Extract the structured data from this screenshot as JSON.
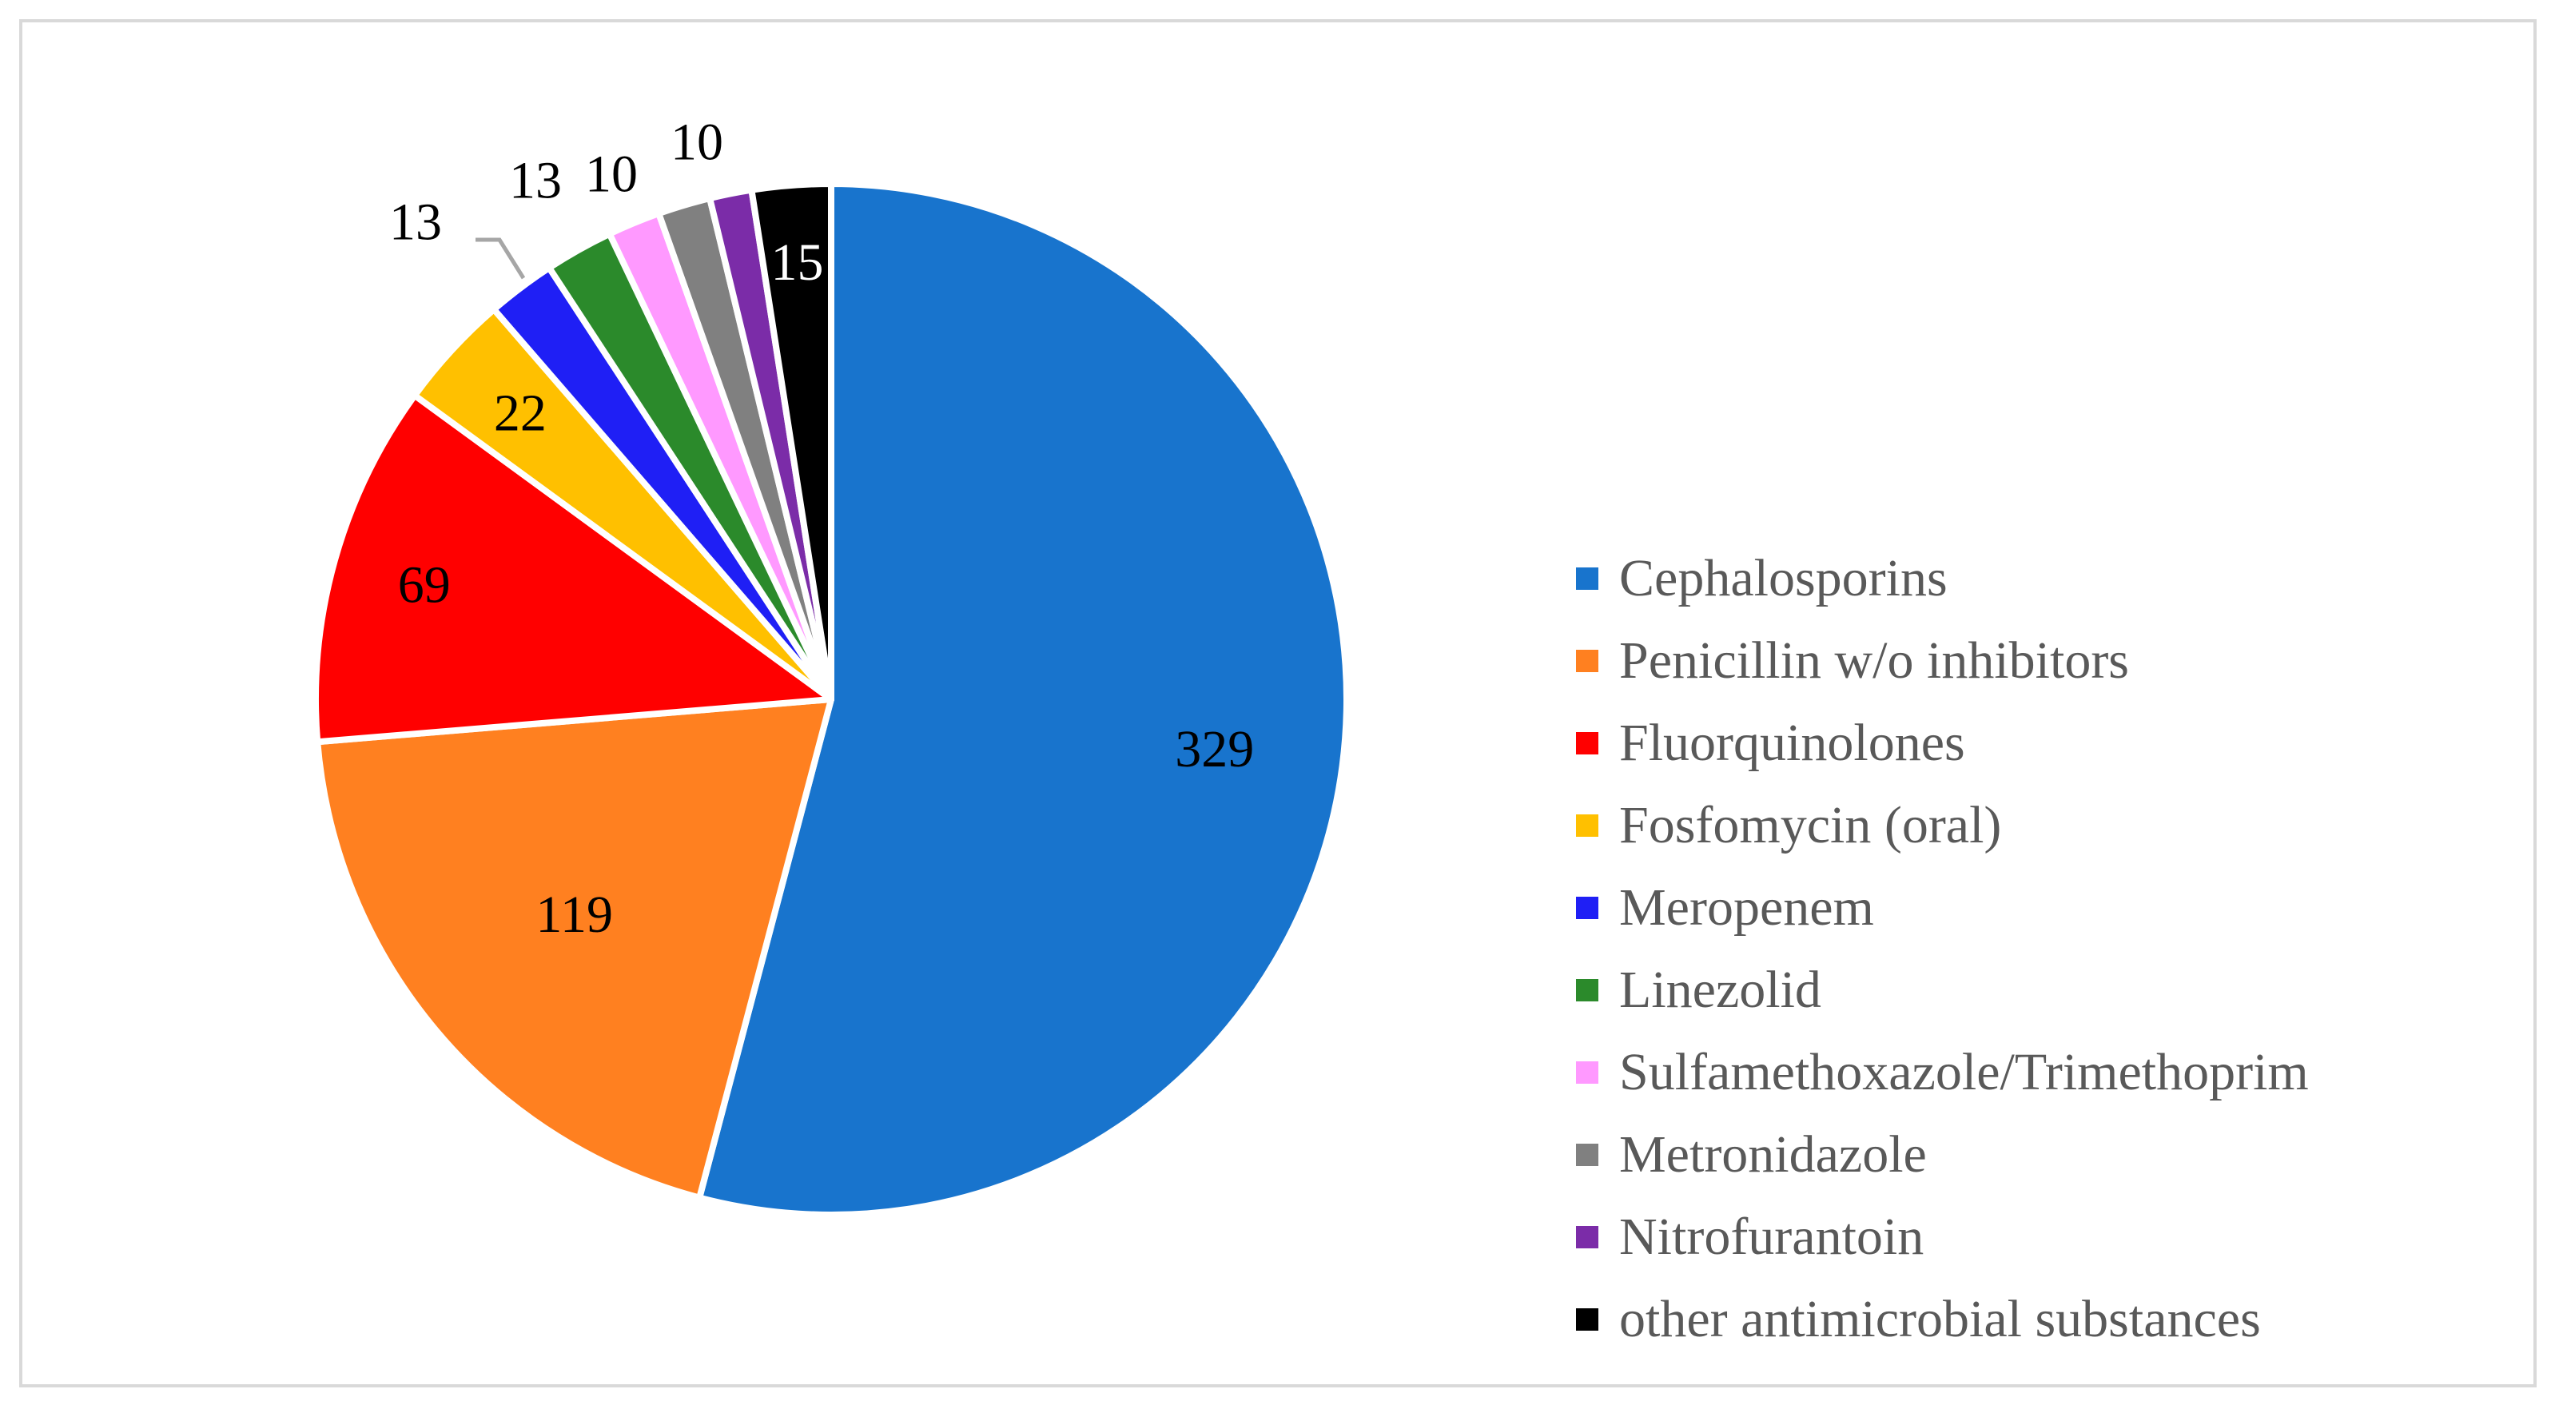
{
  "chart_data": {
    "type": "pie",
    "title": "",
    "start_angle_deg": 0,
    "direction": "clockwise",
    "slices": [
      {
        "name": "Cephalosporins",
        "value": 329,
        "label": "329",
        "color": "#1874cd",
        "label_color": "#000000"
      },
      {
        "name": "Penicillin w/o inhibitors",
        "value": 119,
        "label": "119",
        "color": "#ff8020",
        "label_color": "#000000"
      },
      {
        "name": "Fluorquinolones",
        "value": 69,
        "label": "69",
        "color": "#ff0000",
        "label_color": "#000000"
      },
      {
        "name": "Fosfomycin (oral)",
        "value": 22,
        "label": "22",
        "color": "#ffc000",
        "label_color": "#000000"
      },
      {
        "name": "Meropenem",
        "value": 13,
        "label": "13",
        "color": "#1f1ff5",
        "label_color": "#000000"
      },
      {
        "name": "Linezolid",
        "value": 13,
        "label": "13",
        "color": "#2b8a2b",
        "label_color": "#000000"
      },
      {
        "name": "Sulfamethoxazole/Trimethoprim",
        "value": 10,
        "label": "10",
        "color": "#ff99ff",
        "label_color": "#000000"
      },
      {
        "name": "Metronidazole",
        "value": 10,
        "label": "10",
        "color": "#808080",
        "label_color": "#000000"
      },
      {
        "name": "Nitrofurantoin",
        "value": 8,
        "label": "",
        "color": "#7b2ca8",
        "label_color": "#000000"
      },
      {
        "name": "other antimicrobial substances",
        "value": 15,
        "label": "15",
        "color": "#000000",
        "label_color": "#ffffff"
      }
    ],
    "legend": {
      "position": "right"
    }
  }
}
